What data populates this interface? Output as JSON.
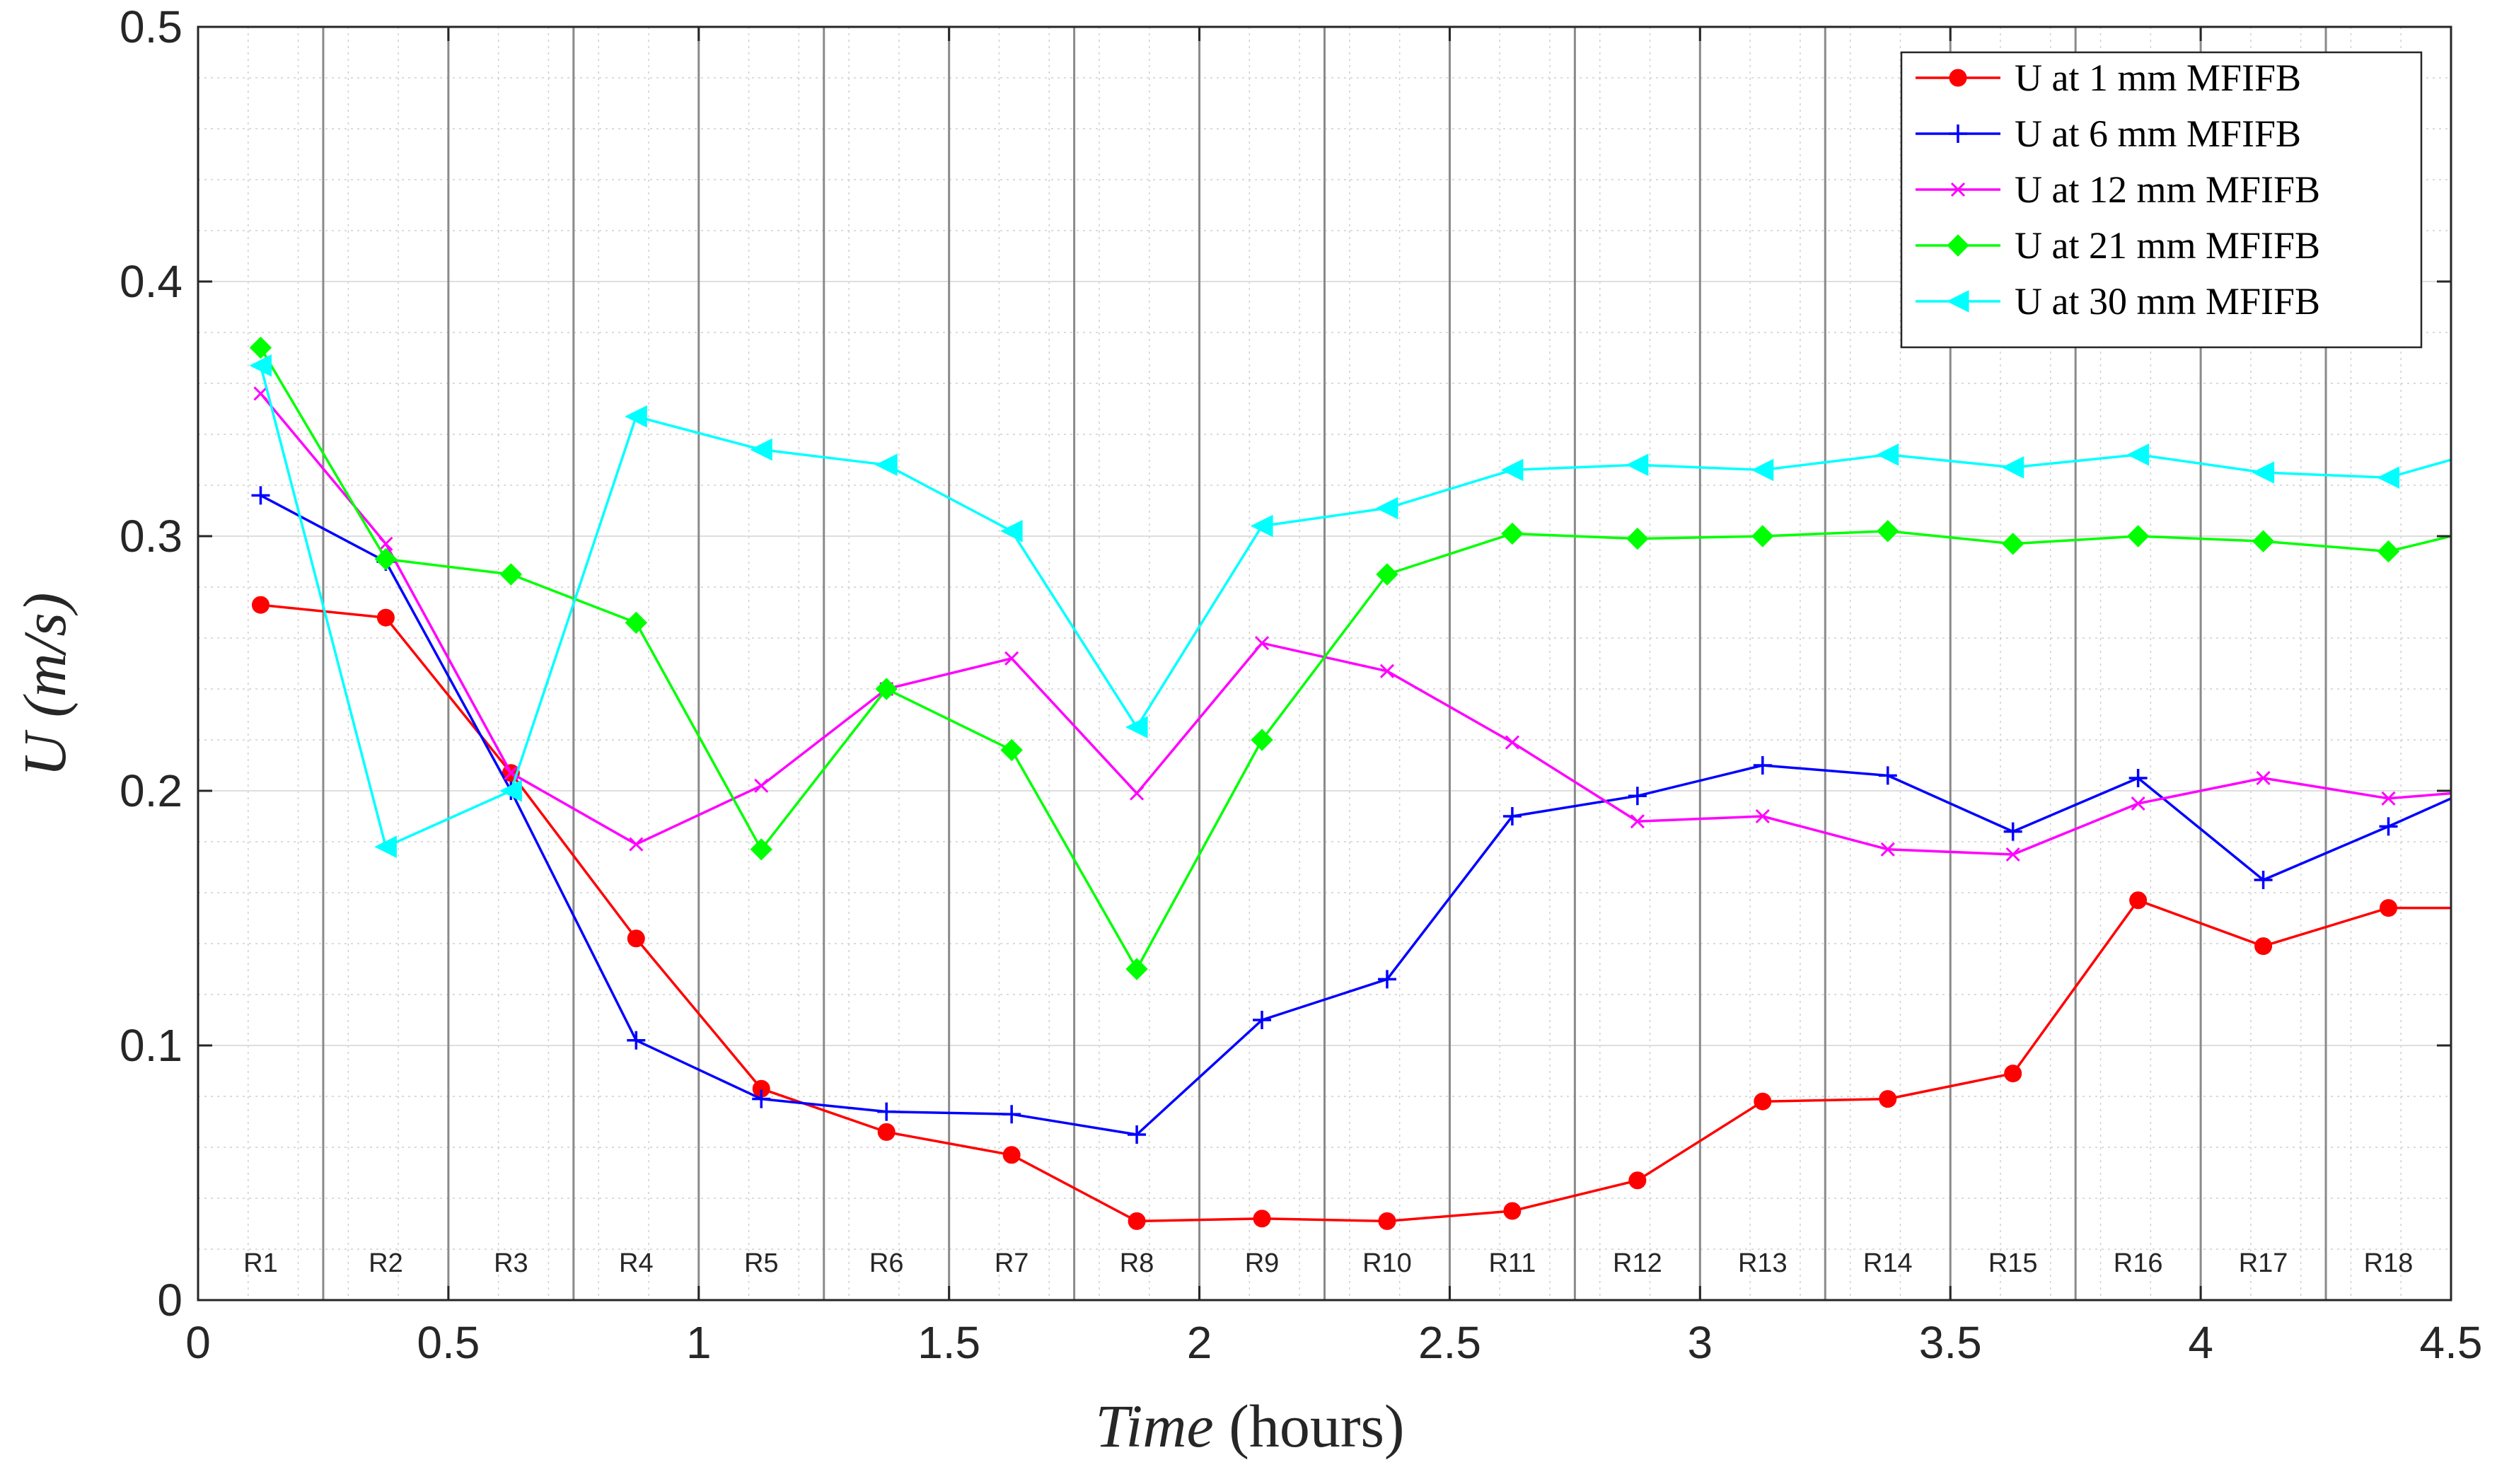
{
  "chart_data": {
    "type": "line",
    "xlabel": {
      "var": "Time",
      "unit": " (hours)"
    },
    "ylabel": {
      "var": "U",
      "unit": "(m/s)"
    },
    "xlim": [
      0,
      4.5
    ],
    "ylim": [
      0,
      0.5
    ],
    "xticks": [
      0,
      0.5,
      1,
      1.5,
      2,
      2.5,
      3,
      3.5,
      4,
      4.5
    ],
    "xtick_labels": [
      "0",
      "0.5",
      "1",
      "1.5",
      "2",
      "2.5",
      "3",
      "3.5",
      "4",
      "4.5"
    ],
    "yticks": [
      0,
      0.1,
      0.2,
      0.3,
      0.4,
      0.5
    ],
    "ytick_labels": [
      "0",
      "0.1",
      "0.2",
      "0.3",
      "0.4",
      "0.5"
    ],
    "grid": true,
    "minor_grid": true,
    "region_boundaries": [
      0.25,
      0.5,
      0.75,
      1.0,
      1.25,
      1.5,
      1.75,
      2.0,
      2.25,
      2.5,
      2.75,
      3.0,
      3.25,
      3.5,
      3.75,
      4.0,
      4.25
    ],
    "regions": [
      "R1",
      "R2",
      "R3",
      "R4",
      "R5",
      "R6",
      "R7",
      "R8",
      "R9",
      "R10",
      "R11",
      "R12",
      "R13",
      "R14",
      "R15",
      "R16",
      "R17",
      "R18"
    ],
    "x": [
      0.125,
      0.375,
      0.625,
      0.875,
      1.125,
      1.375,
      1.625,
      1.875,
      2.125,
      2.375,
      2.625,
      2.875,
      3.125,
      3.375,
      3.625,
      3.875,
      4.125,
      4.375,
      4.5
    ],
    "legend_position": "top-right",
    "series": [
      {
        "name": "U at 1 mm MFIFB",
        "color": "#ff0000",
        "marker": "circle",
        "values": [
          0.273,
          0.268,
          0.207,
          0.142,
          0.083,
          0.066,
          0.057,
          0.031,
          0.032,
          0.031,
          0.035,
          0.047,
          0.078,
          0.079,
          0.089,
          0.157,
          0.139,
          0.154,
          0.154
        ]
      },
      {
        "name": "U at 6 mm MFIFB",
        "color": "#0000ff",
        "marker": "plus",
        "values": [
          0.316,
          0.29,
          0.2,
          0.102,
          0.079,
          0.074,
          0.073,
          0.065,
          0.11,
          0.126,
          0.19,
          0.198,
          0.21,
          0.206,
          0.184,
          0.205,
          0.165,
          0.186,
          0.197
        ]
      },
      {
        "name": "U at 12 mm MFIFB",
        "color": "#ff00ff",
        "marker": "x",
        "values": [
          0.356,
          0.297,
          0.207,
          0.179,
          0.202,
          0.24,
          0.252,
          0.199,
          0.258,
          0.247,
          0.219,
          0.188,
          0.19,
          0.177,
          0.175,
          0.195,
          0.205,
          0.197,
          0.199
        ]
      },
      {
        "name": "U at 21 mm MFIFB",
        "color": "#00ff00",
        "marker": "diamond",
        "values": [
          0.374,
          0.291,
          0.285,
          0.266,
          0.177,
          0.24,
          0.216,
          0.13,
          0.22,
          0.285,
          0.301,
          0.299,
          0.3,
          0.302,
          0.297,
          0.3,
          0.298,
          0.294,
          0.3
        ]
      },
      {
        "name": "U at 30 mm MFIFB",
        "color": "#00ffff",
        "marker": "triangle-left",
        "values": [
          0.367,
          0.178,
          0.2,
          0.347,
          0.334,
          0.328,
          0.302,
          0.225,
          0.304,
          0.311,
          0.326,
          0.328,
          0.326,
          0.332,
          0.327,
          0.332,
          0.325,
          0.323,
          0.33
        ]
      }
    ]
  }
}
